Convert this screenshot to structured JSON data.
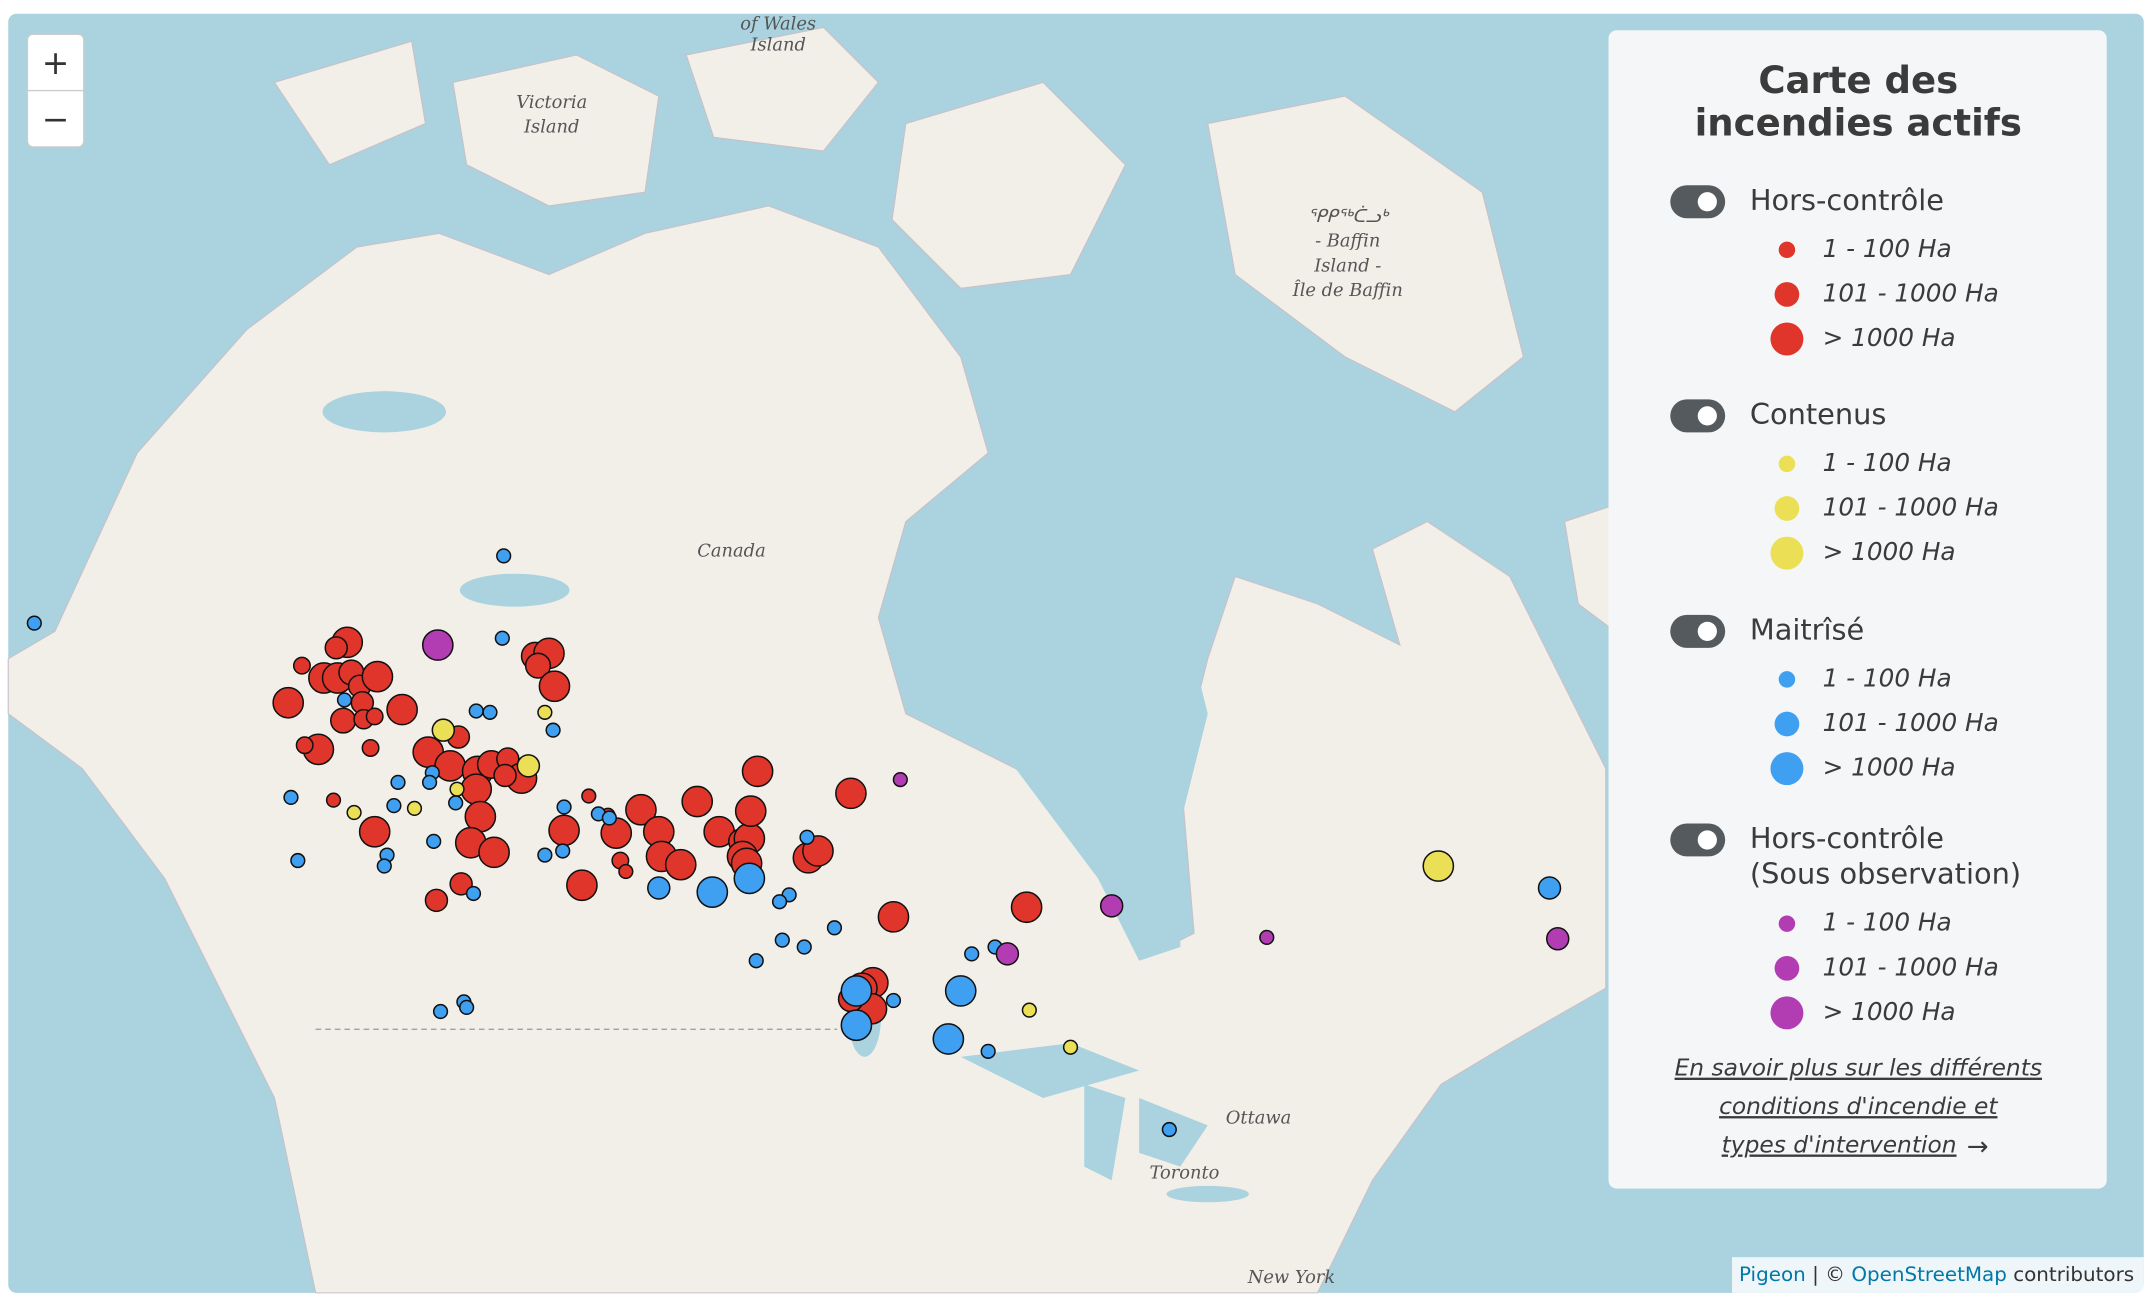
{
  "zoom": {
    "in": "+",
    "out": "−"
  },
  "legend": {
    "title": [
      "Carte des",
      "incendies actifs"
    ],
    "groups": [
      {
        "label": [
          "Hors-contrôle"
        ],
        "color": "#e0352a",
        "sizes": [
          "1 - 100 Ha",
          "101 - 1000 Ha",
          "> 1000 Ha"
        ]
      },
      {
        "label": [
          "Contenus"
        ],
        "color": "#ebdf55",
        "sizes": [
          "1 - 100 Ha",
          "101 - 1000 Ha",
          "> 1000 Ha"
        ]
      },
      {
        "label": [
          "Maitrîsé"
        ],
        "color": "#3f9ff0",
        "sizes": [
          "1 - 100 Ha",
          "101 - 1000 Ha",
          "> 1000 Ha"
        ]
      },
      {
        "label": [
          "Hors-contrôle",
          "(Sous observation)"
        ],
        "color": "#b23db3",
        "sizes": [
          "1 - 100 Ha",
          "101 - 1000 Ha",
          "> 1000 Ha"
        ]
      }
    ],
    "link": [
      "En savoir plus sur les différents",
      "conditions d'incendie et",
      "types d'intervention"
    ],
    "arrow": "→"
  },
  "map_labels": [
    {
      "text": [
        "of Wales",
        "Island"
      ]
    },
    {
      "text": [
        "Victoria",
        "Island"
      ]
    },
    {
      "text": [
        "ᕿᑭᖅᑖᓗᒃ",
        "- Baffin",
        "Island -",
        "Île de Baffin"
      ]
    },
    {
      "text": [
        "Canada"
      ]
    },
    {
      "text": [
        "Ottawa"
      ]
    },
    {
      "text": [
        "Toronto"
      ]
    },
    {
      "text": [
        "New York"
      ]
    }
  ],
  "attribution": {
    "provider": "Pigeon",
    "separator": "| ©",
    "osm": "OpenStreetMap",
    "suffix": "contributors"
  }
}
